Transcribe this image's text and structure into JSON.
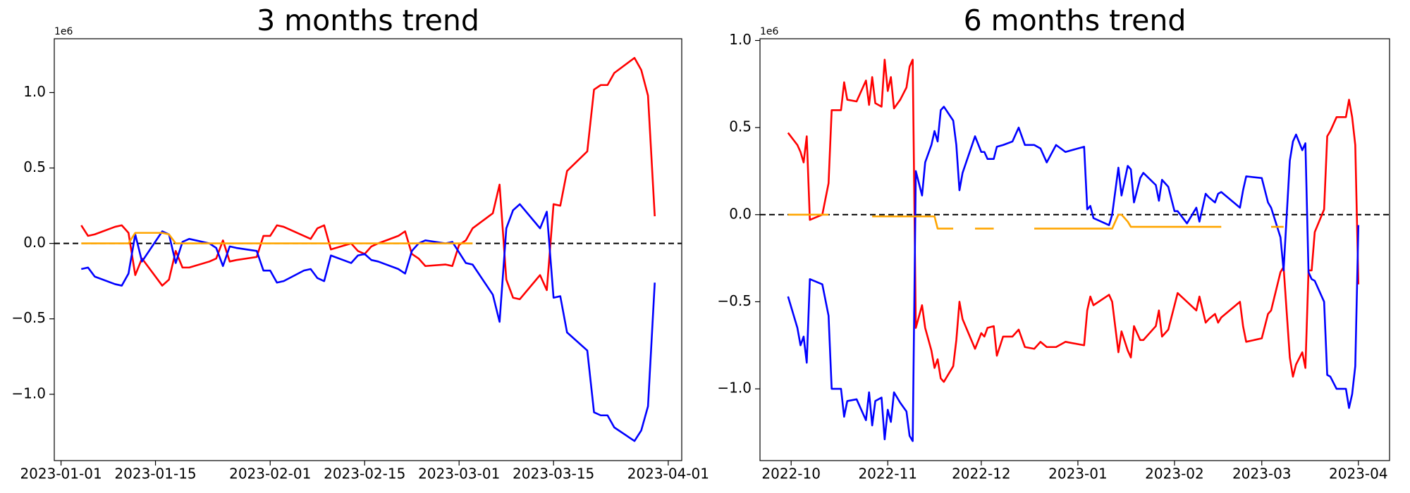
{
  "chart_data": [
    {
      "type": "line",
      "title": "3 months trend",
      "offset_label": "1e6",
      "x": [
        "2023-01-04",
        "2023-01-05",
        "2023-01-06",
        "2023-01-09",
        "2023-01-10",
        "2023-01-11",
        "2023-01-12",
        "2023-01-13",
        "2023-01-16",
        "2023-01-17",
        "2023-01-18",
        "2023-01-19",
        "2023-01-20",
        "2023-01-23",
        "2023-01-24",
        "2023-01-25",
        "2023-01-26",
        "2023-01-27",
        "2023-01-30",
        "2023-01-31",
        "2023-02-01",
        "2023-02-02",
        "2023-02-03",
        "2023-02-06",
        "2023-02-07",
        "2023-02-08",
        "2023-02-09",
        "2023-02-10",
        "2023-02-13",
        "2023-02-14",
        "2023-02-15",
        "2023-02-16",
        "2023-02-17",
        "2023-02-20",
        "2023-02-21",
        "2023-02-22",
        "2023-02-23",
        "2023-02-24",
        "2023-02-27",
        "2023-02-28",
        "2023-03-01",
        "2023-03-02",
        "2023-03-03",
        "2023-03-06",
        "2023-03-07",
        "2023-03-08",
        "2023-03-09",
        "2023-03-10",
        "2023-03-13",
        "2023-03-14",
        "2023-03-15",
        "2023-03-16",
        "2023-03-17",
        "2023-03-20",
        "2023-03-21",
        "2023-03-22",
        "2023-03-23",
        "2023-03-24",
        "2023-03-27",
        "2023-03-28",
        "2023-03-29",
        "2023-03-30"
      ],
      "series": [
        {
          "color": "red",
          "values": [
            0.12,
            0.05,
            0.06,
            0.11,
            0.12,
            0.07,
            -0.21,
            -0.1,
            -0.28,
            -0.24,
            -0.05,
            -0.16,
            -0.16,
            -0.12,
            -0.1,
            0.02,
            -0.12,
            -0.11,
            -0.09,
            0.05,
            0.05,
            0.12,
            0.11,
            0.05,
            0.03,
            0.1,
            0.12,
            -0.04,
            0.0,
            -0.05,
            -0.07,
            -0.02,
            0.0,
            0.05,
            0.08,
            -0.07,
            -0.1,
            -0.15,
            -0.14,
            -0.15,
            -0.01,
            0.02,
            0.1,
            0.2,
            0.39,
            -0.24,
            -0.36,
            -0.37,
            -0.21,
            -0.31,
            0.26,
            0.25,
            0.48,
            0.61,
            1.02,
            1.05,
            1.05,
            1.13,
            1.23,
            1.15,
            0.98,
            0.18
          ]
        },
        {
          "color": "blue",
          "values": [
            -0.17,
            -0.16,
            -0.22,
            -0.27,
            -0.28,
            -0.2,
            0.06,
            -0.12,
            0.08,
            0.06,
            -0.13,
            0.01,
            0.03,
            0.0,
            -0.03,
            -0.15,
            -0.02,
            -0.03,
            -0.05,
            -0.18,
            -0.18,
            -0.26,
            -0.25,
            -0.18,
            -0.17,
            -0.23,
            -0.25,
            -0.08,
            -0.13,
            -0.08,
            -0.07,
            -0.11,
            -0.12,
            -0.17,
            -0.2,
            -0.05,
            0.0,
            0.02,
            0.0,
            0.01,
            -0.06,
            -0.13,
            -0.14,
            -0.34,
            -0.52,
            0.1,
            0.22,
            0.26,
            0.1,
            0.21,
            -0.36,
            -0.35,
            -0.59,
            -0.71,
            -1.12,
            -1.14,
            -1.14,
            -1.22,
            -1.31,
            -1.24,
            -1.08,
            -0.26
          ]
        },
        {
          "color": "orange",
          "values": [
            0,
            0,
            0,
            0,
            0,
            0,
            0.07,
            0.07,
            0.07,
            0.06,
            0,
            0,
            0,
            0,
            0,
            0,
            0,
            0,
            0,
            0,
            0,
            0,
            0,
            0,
            0,
            0,
            0,
            0,
            0,
            0,
            0,
            0,
            0,
            0,
            0,
            0,
            0,
            0,
            0,
            0,
            0,
            0,
            0,
            null,
            null,
            null,
            null,
            null,
            null,
            null,
            null,
            null,
            null,
            null,
            null,
            null,
            null,
            null,
            null,
            null,
            null,
            null
          ]
        }
      ],
      "hline": {
        "y": 0,
        "color": "black",
        "style": "dashed"
      },
      "xlim": [
        "2022-12-31",
        "2023-04-03"
      ],
      "xticks": [
        "2023-01-01",
        "2023-01-15",
        "2023-02-01",
        "2023-02-15",
        "2023-03-01",
        "2023-03-15",
        "2023-04-01"
      ],
      "ylim": [
        -1.44,
        1.357
      ],
      "yticks": [
        {
          "value": -1,
          "label": "−1.0"
        },
        {
          "value": -0.5,
          "label": "−0.5"
        },
        {
          "value": 0,
          "label": "0.0"
        },
        0.5,
        {
          "value": 1,
          "label": "1.0"
        }
      ]
    },
    {
      "type": "line",
      "title": "6 months trend",
      "offset_label": "1e6",
      "x": [
        "2022-09-30",
        "2022-10-03",
        "2022-10-04",
        "2022-10-05",
        "2022-10-06",
        "2022-10-07",
        "2022-10-11",
        "2022-10-13",
        "2022-10-14",
        "2022-10-17",
        "2022-10-18",
        "2022-10-19",
        "2022-10-22",
        "2022-10-25",
        "2022-10-26",
        "2022-10-27",
        "2022-10-28",
        "2022-10-30",
        "2022-10-31",
        "2022-11-01",
        "2022-11-02",
        "2022-11-03",
        "2022-11-05",
        "2022-11-07",
        "2022-11-08",
        "2022-11-09",
        "2022-11-10",
        "2022-11-12",
        "2022-11-13",
        "2022-11-15",
        "2022-11-16",
        "2022-11-17",
        "2022-11-18",
        "2022-11-19",
        "2022-11-22",
        "2022-11-23",
        "2022-11-24",
        "2022-11-25",
        "2022-11-29",
        "2022-12-01",
        "2022-12-02",
        "2022-12-03",
        "2022-12-05",
        "2022-12-06",
        "2022-12-08",
        "2022-12-11",
        "2022-12-13",
        "2022-12-15",
        "2022-12-18",
        "2022-12-20",
        "2022-12-22",
        "2022-12-25",
        "2022-12-28",
        "2023-01-03",
        "2023-01-04",
        "2023-01-05",
        "2023-01-06",
        "2023-01-11",
        "2023-01-12",
        "2023-01-14",
        "2023-01-15",
        "2023-01-17",
        "2023-01-18",
        "2023-01-19",
        "2023-01-21",
        "2023-01-22",
        "2023-01-26",
        "2023-01-27",
        "2023-01-28",
        "2023-01-30",
        "2023-02-01",
        "2023-02-02",
        "2023-02-05",
        "2023-02-08",
        "2023-02-09",
        "2023-02-11",
        "2023-02-12",
        "2023-02-14",
        "2023-02-15",
        "2023-02-16",
        "2023-02-22",
        "2023-02-23",
        "2023-02-24",
        "2023-03-01",
        "2023-03-03",
        "2023-03-04",
        "2023-03-07",
        "2023-03-08",
        "2023-03-10",
        "2023-03-11",
        "2023-03-12",
        "2023-03-14",
        "2023-03-15",
        "2023-03-16",
        "2023-03-17",
        "2023-03-18",
        "2023-03-21",
        "2023-03-22",
        "2023-03-23",
        "2023-03-25",
        "2023-03-28",
        "2023-03-29",
        "2023-03-30",
        "2023-03-31",
        "2023-04-01"
      ],
      "series": [
        {
          "color": "red",
          "values": [
            0.47,
            0.4,
            0.36,
            0.3,
            0.45,
            -0.03,
            0.0,
            0.18,
            0.6,
            0.6,
            0.76,
            0.66,
            0.65,
            0.77,
            0.63,
            0.79,
            0.64,
            0.62,
            0.89,
            0.71,
            0.79,
            0.61,
            0.66,
            0.73,
            0.85,
            0.89,
            -0.65,
            -0.52,
            -0.65,
            -0.78,
            -0.88,
            -0.83,
            -0.94,
            -0.96,
            -0.87,
            -0.72,
            -0.5,
            -0.6,
            -0.77,
            -0.68,
            -0.7,
            -0.65,
            -0.64,
            -0.81,
            -0.7,
            -0.7,
            -0.66,
            -0.76,
            -0.77,
            -0.73,
            -0.76,
            -0.76,
            -0.73,
            -0.75,
            -0.55,
            -0.47,
            -0.52,
            -0.46,
            -0.5,
            -0.79,
            -0.67,
            -0.78,
            -0.82,
            -0.64,
            -0.72,
            -0.72,
            -0.64,
            -0.55,
            -0.7,
            -0.66,
            -0.52,
            -0.45,
            -0.5,
            -0.55,
            -0.47,
            -0.62,
            -0.6,
            -0.57,
            -0.62,
            -0.59,
            -0.5,
            -0.64,
            -0.73,
            -0.71,
            -0.57,
            -0.55,
            -0.33,
            -0.3,
            -0.82,
            -0.93,
            -0.86,
            -0.79,
            -0.88,
            -0.32,
            -0.32,
            -0.1,
            0.03,
            0.45,
            0.48,
            0.56,
            0.56,
            0.66,
            0.56,
            0.4,
            -0.4
          ]
        },
        {
          "color": "blue",
          "values": [
            -0.47,
            -0.65,
            -0.75,
            -0.7,
            -0.85,
            -0.37,
            -0.4,
            -0.58,
            -1.0,
            -1.0,
            -1.16,
            -1.07,
            -1.06,
            -1.18,
            -1.02,
            -1.21,
            -1.07,
            -1.05,
            -1.29,
            -1.12,
            -1.19,
            -1.02,
            -1.08,
            -1.13,
            -1.27,
            -1.3,
            0.25,
            0.11,
            0.3,
            0.4,
            0.48,
            0.42,
            0.6,
            0.62,
            0.54,
            0.4,
            0.14,
            0.24,
            0.45,
            0.36,
            0.36,
            0.32,
            0.32,
            0.39,
            0.4,
            0.42,
            0.5,
            0.4,
            0.4,
            0.38,
            0.3,
            0.4,
            0.36,
            0.39,
            0.03,
            0.05,
            -0.02,
            -0.06,
            0.0,
            0.27,
            0.11,
            0.28,
            0.26,
            0.07,
            0.21,
            0.24,
            0.17,
            0.08,
            0.2,
            0.16,
            0.02,
            0.02,
            -0.05,
            0.04,
            -0.04,
            0.12,
            0.1,
            0.07,
            0.12,
            0.13,
            0.04,
            0.14,
            0.22,
            0.21,
            0.07,
            0.04,
            -0.13,
            -0.32,
            0.31,
            0.42,
            0.46,
            0.37,
            0.41,
            -0.33,
            -0.37,
            -0.38,
            -0.5,
            -0.92,
            -0.93,
            -1.0,
            -1.0,
            -1.11,
            -1.03,
            -0.87,
            -0.06
          ]
        },
        {
          "color": "orange",
          "values": [
            0,
            0,
            0,
            0,
            0,
            0,
            0,
            0,
            null,
            null,
            null,
            null,
            null,
            null,
            null,
            -0.01,
            -0.01,
            -0.01,
            -0.01,
            -0.01,
            -0.01,
            -0.01,
            -0.01,
            -0.01,
            -0.01,
            -0.01,
            -0.01,
            -0.01,
            -0.01,
            -0.01,
            -0.01,
            -0.08,
            -0.08,
            -0.08,
            -0.08,
            null,
            null,
            null,
            -0.08,
            -0.08,
            -0.08,
            -0.08,
            -0.08,
            null,
            null,
            null,
            null,
            null,
            -0.08,
            -0.08,
            -0.08,
            -0.08,
            -0.08,
            -0.08,
            -0.08,
            -0.08,
            -0.08,
            -0.08,
            -0.08,
            0,
            0,
            -0.04,
            -0.07,
            -0.07,
            -0.07,
            -0.07,
            -0.07,
            -0.07,
            -0.07,
            -0.07,
            -0.07,
            -0.07,
            -0.07,
            -0.07,
            -0.07,
            -0.07,
            -0.07,
            -0.07,
            -0.07,
            -0.07,
            null,
            null,
            null,
            null,
            null,
            -0.07,
            -0.07,
            -0.07,
            null,
            null,
            null,
            null,
            null,
            null,
            null,
            null,
            null,
            null,
            null,
            null,
            null,
            null,
            null,
            null,
            null
          ]
        }
      ],
      "hline": {
        "y": 0,
        "color": "black",
        "style": "dashed"
      },
      "xlim": [
        "2022-09-21",
        "2023-04-11"
      ],
      "xticks": [
        {
          "value": "2022-10-01",
          "label": "2022-10"
        },
        {
          "value": "2022-11-01",
          "label": "2022-11"
        },
        {
          "value": "2022-12-01",
          "label": "2022-12"
        },
        {
          "value": "2023-01-01",
          "label": "2023-01"
        },
        {
          "value": "2023-02-01",
          "label": "2023-02"
        },
        {
          "value": "2023-03-01",
          "label": "2023-03"
        },
        {
          "value": "2023-04-01",
          "label": "2023-04"
        }
      ],
      "ylim": [
        -1.412,
        1.01
      ],
      "yticks": [
        {
          "value": -1,
          "label": "−1.0"
        },
        {
          "value": -0.5,
          "label": "−0.5"
        },
        {
          "value": 0,
          "label": "0.0"
        },
        0.5,
        {
          "value": 1,
          "label": "1.0"
        }
      ]
    }
  ]
}
